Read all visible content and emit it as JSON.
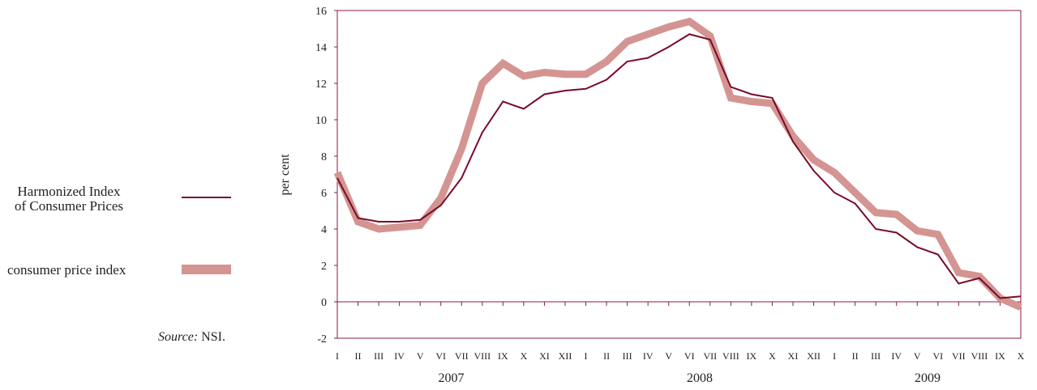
{
  "chart_data": {
    "type": "line",
    "title": "",
    "ylabel": "per cent",
    "ylim": [
      -2,
      16
    ],
    "yticks": [
      -2,
      0,
      2,
      4,
      6,
      8,
      10,
      12,
      14,
      16
    ],
    "grid": false,
    "legend_position": "left",
    "x_labels": [
      "I",
      "II",
      "III",
      "IV",
      "V",
      "VI",
      "VII",
      "VIII",
      "IX",
      "X",
      "XI",
      "XII",
      "I",
      "II",
      "III",
      "IV",
      "V",
      "VI",
      "VII",
      "VIII",
      "IX",
      "X",
      "XI",
      "XII",
      "I",
      "II",
      "III",
      "IV",
      "V",
      "VI",
      "VII",
      "VIII",
      "IX",
      "X"
    ],
    "years": [
      {
        "label": "2007",
        "start_index": 0,
        "end_index": 11
      },
      {
        "label": "2008",
        "start_index": 12,
        "end_index": 23
      },
      {
        "label": "2009",
        "start_index": 24,
        "end_index": 33
      }
    ],
    "series": [
      {
        "name": "Harmonized Index of Consumer Prices",
        "name_lines": [
          "Harmonized Index",
          "of Consumer Prices"
        ],
        "color": "#7a0a2a",
        "style": "thin",
        "values": [
          6.8,
          4.6,
          4.4,
          4.4,
          4.5,
          5.3,
          6.8,
          9.3,
          11.0,
          10.6,
          11.4,
          11.6,
          11.7,
          12.2,
          13.2,
          13.4,
          14.0,
          14.7,
          14.4,
          11.8,
          11.4,
          11.2,
          8.8,
          7.2,
          6.0,
          5.4,
          4.0,
          3.8,
          3.0,
          2.6,
          1.0,
          1.3,
          0.2,
          0.3
        ]
      },
      {
        "name": "consumer price index",
        "color": "#d49592",
        "style": "thick",
        "values": [
          7.1,
          4.4,
          4.0,
          4.1,
          4.2,
          5.7,
          8.4,
          12.0,
          13.1,
          12.4,
          12.6,
          12.5,
          12.5,
          13.2,
          14.3,
          14.7,
          15.1,
          15.4,
          14.6,
          11.2,
          11.0,
          10.9,
          9.1,
          7.8,
          7.1,
          6.0,
          4.9,
          4.8,
          3.9,
          3.7,
          1.6,
          1.4,
          0.2,
          -0.3
        ]
      }
    ]
  },
  "source": {
    "prefix": "Source:",
    "text": " NSI."
  }
}
